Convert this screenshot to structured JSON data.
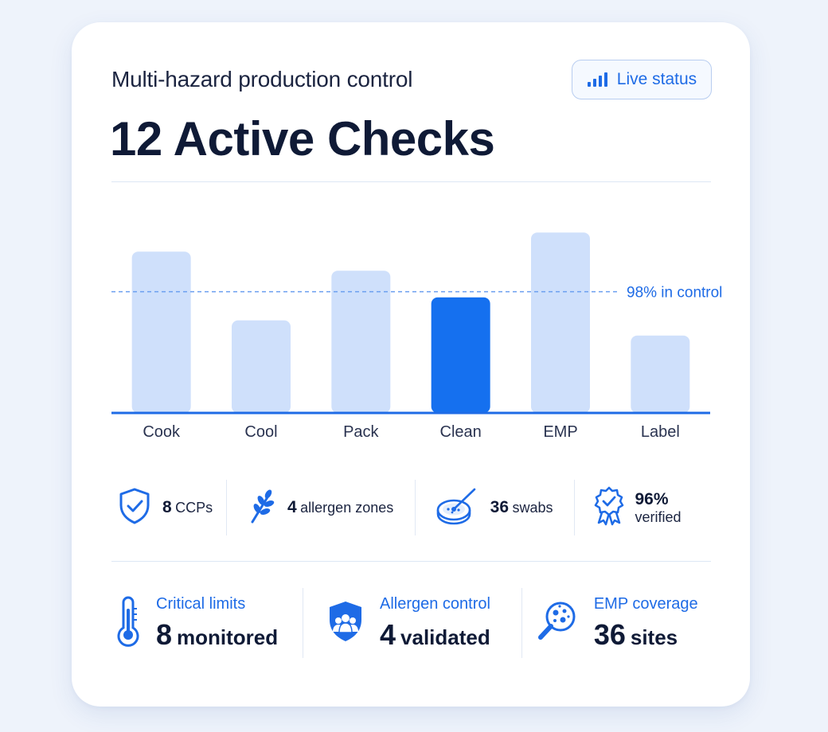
{
  "header": {
    "subtitle": "Multi-hazard production control",
    "headline": "12 Active Checks",
    "live_status": {
      "label": "Live status",
      "icon": "signal-bars-icon"
    }
  },
  "chart_data": {
    "type": "bar",
    "categories": [
      "Cook",
      "Cool",
      "Pack",
      "Clean",
      "EMP",
      "Label"
    ],
    "values": [
      82,
      46,
      72,
      58,
      92,
      38
    ],
    "highlighted": "Clean",
    "ylim": [
      0,
      100
    ],
    "reference_line": {
      "value": 61,
      "label": "98% in control"
    },
    "colors": {
      "bar": "#cfe0fb",
      "highlight": "#1570ef",
      "baseline": "#1e6be6",
      "reference": "#6b9ff0"
    }
  },
  "summary_pills": [
    {
      "icon": "shield-check-icon",
      "value": "8",
      "label": "CCPs"
    },
    {
      "icon": "wheat-icon",
      "value": "4",
      "label": "allergen zones"
    },
    {
      "icon": "petri-dish-swab-icon",
      "value": "36",
      "label": "swabs"
    },
    {
      "icon": "verified-badge-icon",
      "value": "96%",
      "label": "verified"
    }
  ],
  "stats": [
    {
      "icon": "thermometer-icon",
      "label": "Critical limits",
      "value": "8",
      "unit": "monitored"
    },
    {
      "icon": "people-shield-icon",
      "label": "Allergen control",
      "value": "4",
      "unit": "validated"
    },
    {
      "icon": "magnifier-microbes-icon",
      "label": "EMP coverage",
      "value": "36",
      "unit": "sites"
    }
  ],
  "colors": {
    "accent": "#1e6be6",
    "text": "#0f1a36",
    "background": "#eef3fb",
    "card": "#ffffff"
  }
}
